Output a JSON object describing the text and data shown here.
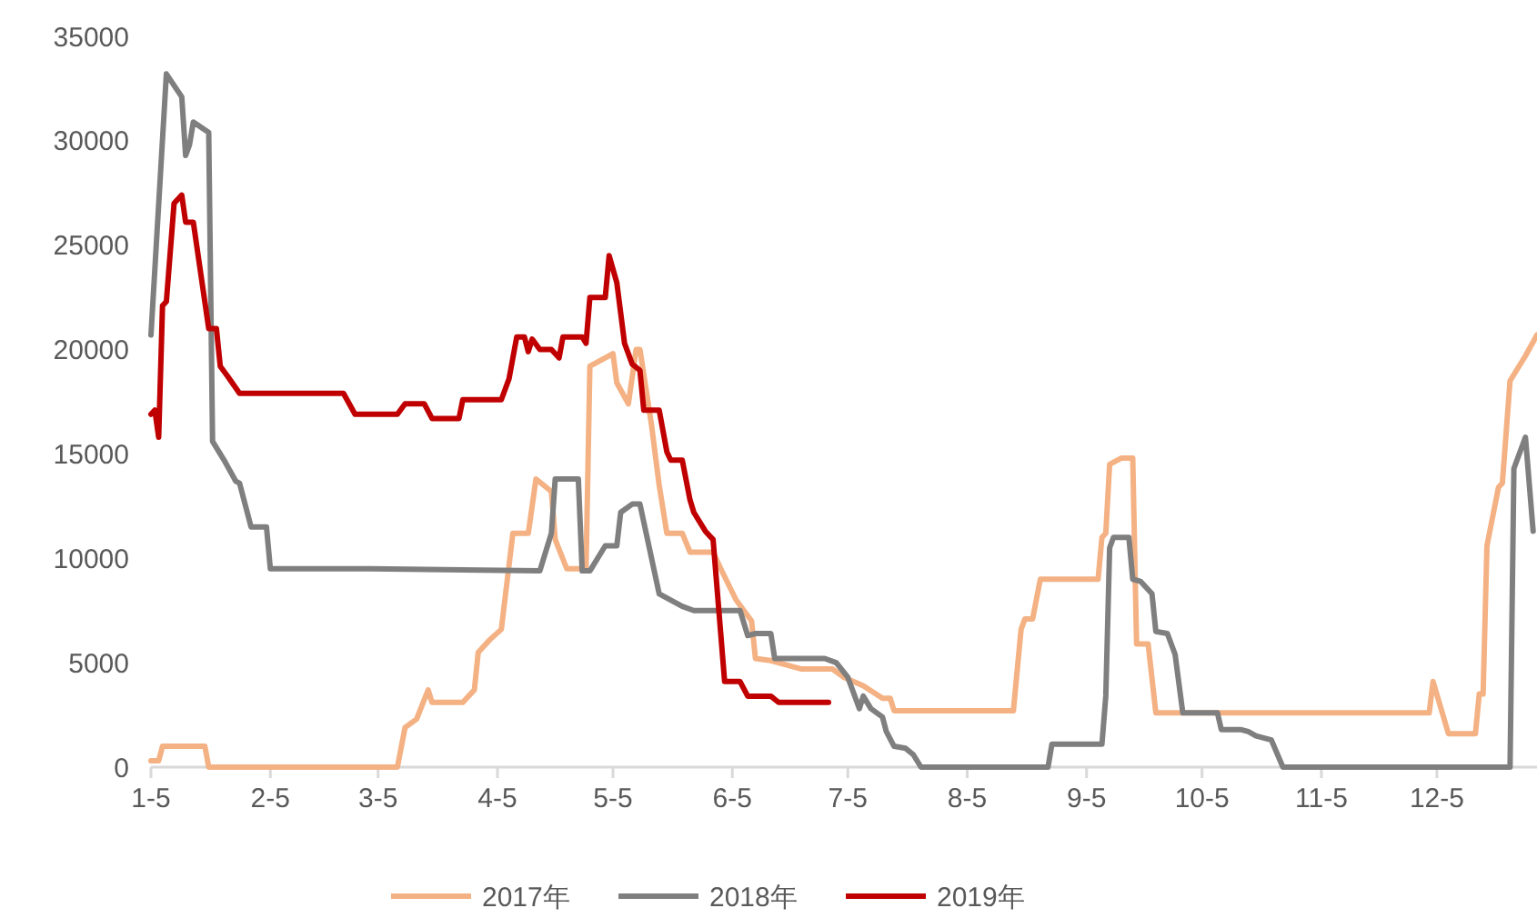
{
  "chart_data": {
    "type": "line",
    "xlim": [
      "--01-05",
      "--12-31"
    ],
    "xticks": [
      {
        "value": "--01-05",
        "label": "1-5"
      },
      {
        "value": "--02-05",
        "label": "2-5"
      },
      {
        "value": "--03-05",
        "label": "3-5"
      },
      {
        "value": "--04-05",
        "label": "4-5"
      },
      {
        "value": "--05-05",
        "label": "5-5"
      },
      {
        "value": "--06-05",
        "label": "6-5"
      },
      {
        "value": "--07-05",
        "label": "7-5"
      },
      {
        "value": "--08-05",
        "label": "8-5"
      },
      {
        "value": "--09-05",
        "label": "9-5"
      },
      {
        "value": "--10-05",
        "label": "10-5"
      },
      {
        "value": "--11-05",
        "label": "11-5"
      },
      {
        "value": "--12-05",
        "label": "12-5"
      }
    ],
    "ylim": [
      0,
      35000
    ],
    "yticks": [
      0,
      5000,
      10000,
      15000,
      20000,
      25000,
      30000,
      35000
    ],
    "grid": false,
    "legend": "bottom",
    "marker": "none",
    "line_style": "solid",
    "series": [
      {
        "name": "2017年",
        "color": "#f4b183",
        "x": [
          "--01-05",
          "--01-07",
          "--01-08",
          "--01-19",
          "--01-20",
          "--03-10",
          "--03-12",
          "--03-15",
          "--03-18",
          "--03-19",
          "--03-27",
          "--03-30",
          "--03-31",
          "--04-03",
          "--04-06",
          "--04-09",
          "--04-13",
          "--04-15",
          "--04-19",
          "--04-20",
          "--04-23",
          "--04-28",
          "--04-29",
          "--05-05",
          "--05-06",
          "--05-09",
          "--05-11",
          "--05-12",
          "--05-15",
          "--05-17",
          "--05-19",
          "--05-23",
          "--05-25",
          "--05-31",
          "--06-02",
          "--06-06",
          "--06-10",
          "--06-11",
          "--06-15",
          "--06-23",
          "--07-01",
          "--07-04",
          "--07-09",
          "--07-14",
          "--07-16",
          "--07-17",
          "--08-17",
          "--08-19",
          "--08-20",
          "--08-22",
          "--08-24",
          "--09-08",
          "--09-09",
          "--09-10",
          "--09-11",
          "--09-14",
          "--09-17",
          "--09-18",
          "--09-21",
          "--09-23",
          "--12-03",
          "--12-04",
          "--12-08",
          "--12-15",
          "--12-16",
          "--12-17",
          "--12-18",
          "--12-21",
          "--12-22",
          "--12-24",
          "--12-28",
          "--12-31"
        ],
        "values": [
          300,
          300,
          1000,
          1000,
          0,
          0,
          1900,
          2300,
          3700,
          3100,
          3100,
          3700,
          5500,
          6100,
          6600,
          11200,
          11200,
          13800,
          13200,
          10900,
          9500,
          9500,
          19200,
          19800,
          18400,
          17400,
          20000,
          20000,
          16400,
          13500,
          11200,
          11200,
          10300,
          10300,
          9500,
          8000,
          7000,
          5200,
          5100,
          4700,
          4700,
          4300,
          3900,
          3300,
          3300,
          2700,
          2700,
          6600,
          7100,
          7100,
          9000,
          9000,
          11000,
          11200,
          14500,
          14800,
          14800,
          5900,
          5900,
          2600,
          2600,
          4100,
          1600,
          1600,
          3500,
          3500,
          10600,
          13400,
          13600,
          18500,
          19700,
          20700
        ]
      },
      {
        "name": "2018年",
        "color": "#7f7f7f",
        "x": [
          "--01-05",
          "--01-09",
          "--01-13",
          "--01-14",
          "--01-15",
          "--01-16",
          "--01-20",
          "--01-21",
          "--01-24",
          "--01-27",
          "--01-28",
          "--01-31",
          "--02-04",
          "--02-05",
          "--03-03",
          "--04-16",
          "--04-19",
          "--04-20",
          "--04-26",
          "--04-27",
          "--04-29",
          "--05-03",
          "--05-06",
          "--05-07",
          "--05-10",
          "--05-12",
          "--05-17",
          "--05-23",
          "--05-26",
          "--06-07",
          "--06-09",
          "--06-11",
          "--06-15",
          "--06-16",
          "--06-29",
          "--07-02",
          "--07-05",
          "--07-08",
          "--07-09",
          "--07-11",
          "--07-14",
          "--07-15",
          "--07-17",
          "--07-20",
          "--07-22",
          "--07-24",
          "--08-26",
          "--08-27",
          "--09-09",
          "--09-10",
          "--09-11",
          "--09-12",
          "--09-16",
          "--09-17",
          "--09-19",
          "--09-22",
          "--09-23",
          "--09-26",
          "--09-28",
          "--09-30",
          "--10-09",
          "--10-10",
          "--10-15",
          "--10-17",
          "--10-19",
          "--10-23",
          "--10-26",
          "--12-24",
          "--12-25",
          "--12-28",
          "--12-30"
        ],
        "values": [
          20700,
          33200,
          32100,
          29300,
          29800,
          30900,
          30400,
          15600,
          14700,
          13700,
          13600,
          11500,
          11500,
          9500,
          9500,
          9400,
          11200,
          13800,
          13800,
          9400,
          9400,
          10600,
          10600,
          12200,
          12600,
          12600,
          8300,
          7700,
          7500,
          7500,
          6300,
          6400,
          6400,
          5200,
          5200,
          5000,
          4300,
          2800,
          3400,
          2800,
          2400,
          1700,
          1000,
          900,
          600,
          0,
          0,
          1100,
          1100,
          3400,
          10500,
          11000,
          11000,
          9000,
          8900,
          8300,
          6500,
          6400,
          5400,
          2600,
          2600,
          1800,
          1800,
          1700,
          1500,
          1300,
          0,
          0,
          14300,
          15800,
          11300
        ]
      },
      {
        "name": "2019年",
        "color": "#c00000",
        "x": [
          "--01-05",
          "--01-06",
          "--01-07",
          "--01-08",
          "--01-09",
          "--01-11",
          "--01-13",
          "--01-14",
          "--01-16",
          "--01-20",
          "--01-22",
          "--01-23",
          "--01-25",
          "--01-28",
          "--02-24",
          "--02-27",
          "--03-10",
          "--03-12",
          "--03-17",
          "--03-19",
          "--03-26",
          "--03-27",
          "--04-06",
          "--04-08",
          "--04-10",
          "--04-12",
          "--04-13",
          "--04-14",
          "--04-16",
          "--04-19",
          "--04-21",
          "--04-22",
          "--04-27",
          "--04-28",
          "--04-29",
          "--05-03",
          "--05-04",
          "--05-06",
          "--05-08",
          "--05-10",
          "--05-12",
          "--05-13",
          "--05-17",
          "--05-19",
          "--05-20",
          "--05-23",
          "--05-25",
          "--05-26",
          "--05-29",
          "--05-31",
          "--06-03",
          "--06-07",
          "--06-09",
          "--06-15",
          "--06-17",
          "--06-30"
        ],
        "values": [
          16900,
          17100,
          15800,
          22100,
          22300,
          27000,
          27400,
          26100,
          26100,
          21000,
          21000,
          19200,
          18700,
          17900,
          17900,
          16900,
          16900,
          17400,
          17400,
          16700,
          16700,
          17600,
          17600,
          18600,
          20600,
          20600,
          19900,
          20500,
          20000,
          20000,
          19600,
          20600,
          20600,
          20300,
          22500,
          22500,
          24500,
          23200,
          20300,
          19300,
          19000,
          17100,
          17100,
          15100,
          14700,
          14700,
          12800,
          12200,
          11300,
          10900,
          4100,
          4100,
          3400,
          3400,
          3100,
          3100
        ]
      }
    ]
  }
}
